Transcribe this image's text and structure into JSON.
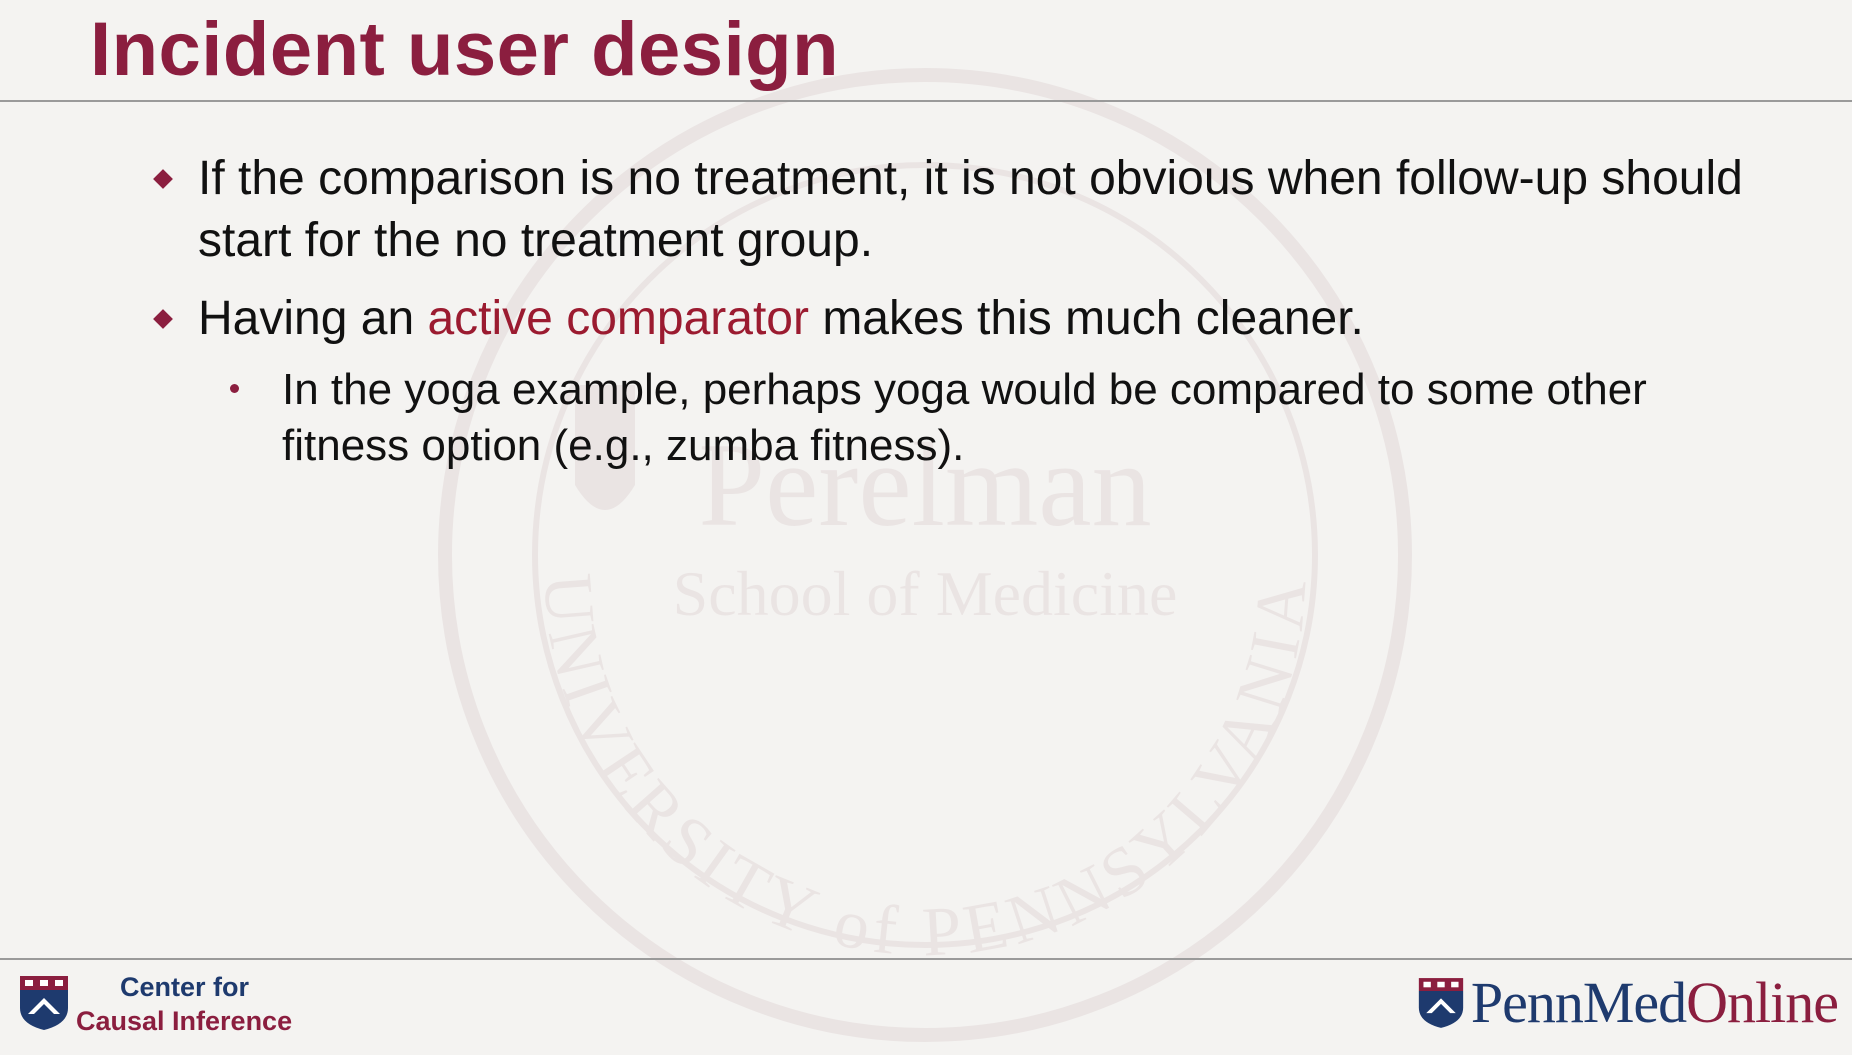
{
  "slide": {
    "title": "Incident user design",
    "bullets": [
      {
        "text": "If the comparison is no treatment, it is not obvious when follow-up should start for the no treatment group."
      },
      {
        "before": "Having an ",
        "highlight": "active comparator",
        "after": " makes this much cleaner.",
        "sub": "In the yoga example, perhaps yoga would be compared to some other fitness option (e.g., zumba fitness)."
      }
    ]
  },
  "footer": {
    "left_line1": "Center for",
    "left_line2": "Causal Inference",
    "brand_penn": "Penn",
    "brand_med": "Med",
    "brand_online": "Online"
  },
  "watermark": {
    "name": "Perelman",
    "school": "School of Medicine",
    "arc": "UNIVERSITY of PENNSYLVANIA"
  },
  "colors": {
    "title": "#8b1e3f",
    "accent": "#9b1b30",
    "navy": "#1e3a6e",
    "background": "#f4f3f1"
  }
}
